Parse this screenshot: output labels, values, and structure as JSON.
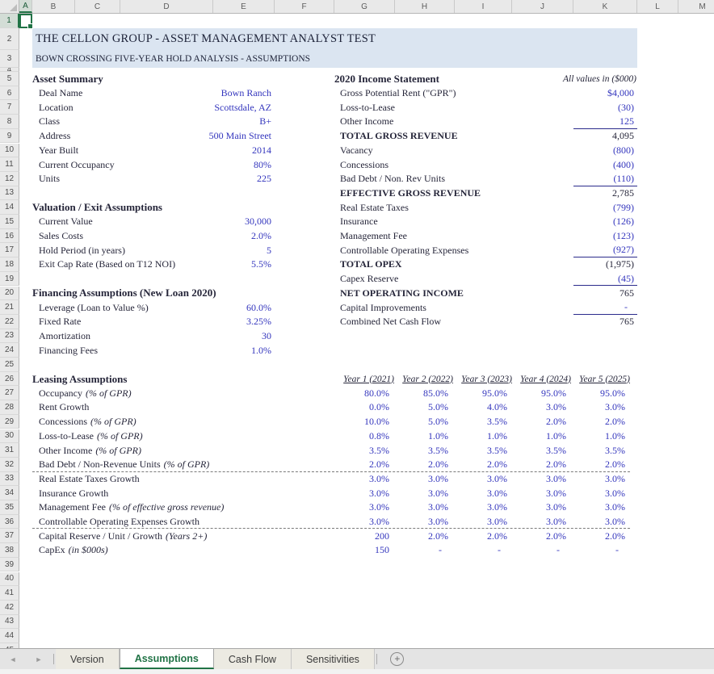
{
  "grid": {
    "column_letters": [
      "A",
      "B",
      "C",
      "D",
      "E",
      "F",
      "G",
      "H",
      "I",
      "J",
      "K",
      "L",
      "M"
    ],
    "visible_row_count": 45,
    "selected_cell": "A1"
  },
  "title_block": {
    "line1": "THE CELLON GROUP - ASSET MANAGEMENT ANALYST TEST",
    "line2": "BOWN CROSSING FIVE-YEAR HOLD ANALYSIS - ASSUMPTIONS"
  },
  "asset_summary": {
    "heading": "Asset Summary",
    "items": [
      {
        "label": "Deal Name",
        "value": "Bown Ranch"
      },
      {
        "label": "Location",
        "value": "Scottsdale, AZ"
      },
      {
        "label": "Class",
        "value": "B+"
      },
      {
        "label": "Address",
        "value": "500 Main Street"
      },
      {
        "label": "Year Built",
        "value": "2014"
      },
      {
        "label": "Current Occupancy",
        "value": "80%"
      },
      {
        "label": "Units",
        "value": "225"
      }
    ]
  },
  "valuation_exit": {
    "heading": "Valuation / Exit Assumptions",
    "items": [
      {
        "label": "Current Value",
        "value": "30,000"
      },
      {
        "label": "Sales Costs",
        "value": "2.0%"
      },
      {
        "label": "Hold Period (in years)",
        "value": "5"
      },
      {
        "label": "Exit Cap Rate (Based on T12 NOI)",
        "value": "5.5%"
      }
    ]
  },
  "financing": {
    "heading": "Financing Assumptions (New Loan 2020)",
    "items": [
      {
        "label": "Leverage (Loan to Value %)",
        "value": "60.0%"
      },
      {
        "label": "Fixed Rate",
        "value": "3.25%"
      },
      {
        "label": "Amortization",
        "value": "30"
      },
      {
        "label": "Financing Fees",
        "value": "1.0%"
      }
    ]
  },
  "income_statement": {
    "heading": "2020 Income Statement",
    "note": "All values in ($000)",
    "lines": [
      {
        "label": "Gross Potential Rent (\"GPR\")",
        "value": "$4,000",
        "style": "input",
        "sum_line": false
      },
      {
        "label": "Loss-to-Lease",
        "value": "(30)",
        "style": "input",
        "sum_line": false
      },
      {
        "label": "Other Income",
        "value": "125",
        "style": "input",
        "sum_line": true
      },
      {
        "label": "TOTAL GROSS REVENUE",
        "value": "4,095",
        "style": "total",
        "sum_line": false
      },
      {
        "label": "Vacancy",
        "value": "(800)",
        "style": "input",
        "sum_line": false
      },
      {
        "label": "Concessions",
        "value": "(400)",
        "style": "input",
        "sum_line": false
      },
      {
        "label": "Bad Debt / Non. Rev Units",
        "value": "(110)",
        "style": "input",
        "sum_line": true
      },
      {
        "label": "EFFECTIVE GROSS REVENUE",
        "value": "2,785",
        "style": "total",
        "sum_line": false
      },
      {
        "label": "Real Estate Taxes",
        "value": "(799)",
        "style": "input",
        "sum_line": false
      },
      {
        "label": "Insurance",
        "value": "(126)",
        "style": "input",
        "sum_line": false
      },
      {
        "label": "Management Fee",
        "value": "(123)",
        "style": "input",
        "sum_line": false
      },
      {
        "label": "Controllable Operating Expenses",
        "value": "(927)",
        "style": "input",
        "sum_line": true
      },
      {
        "label": "TOTAL OPEX",
        "value": "(1,975)",
        "style": "total",
        "sum_line": false
      },
      {
        "label": "Capex Reserve",
        "value": "(45)",
        "style": "input",
        "sum_line": true
      },
      {
        "label": "NET OPERATING INCOME",
        "value": "765",
        "style": "total",
        "sum_line": false
      },
      {
        "label": "Capital Improvements",
        "value": "-",
        "style": "input",
        "sum_line": true
      },
      {
        "label": "Combined Net Cash Flow",
        "value": "765",
        "style": "plain",
        "sum_line": false
      }
    ]
  },
  "leasing": {
    "heading": "Leasing Assumptions",
    "year_headers": [
      "Year 1 (2021)",
      "Year 2 (2022)",
      "Year 3 (2023)",
      "Year 4 (2024)",
      "Year 5 (2025)"
    ],
    "rows": [
      {
        "label": "Occupancy",
        "note": "(% of GPR)",
        "values": [
          "80.0%",
          "85.0%",
          "95.0%",
          "95.0%",
          "95.0%"
        ],
        "dashed_bottom": false
      },
      {
        "label": "Rent Growth",
        "note": "",
        "values": [
          "0.0%",
          "5.0%",
          "4.0%",
          "3.0%",
          "3.0%"
        ],
        "dashed_bottom": false
      },
      {
        "label": "Concessions",
        "note": "(% of GPR)",
        "values": [
          "10.0%",
          "5.0%",
          "3.5%",
          "2.0%",
          "2.0%"
        ],
        "dashed_bottom": false
      },
      {
        "label": "Loss-to-Lease",
        "note": "(% of GPR)",
        "values": [
          "0.8%",
          "1.0%",
          "1.0%",
          "1.0%",
          "1.0%"
        ],
        "dashed_bottom": false
      },
      {
        "label": "Other Income",
        "note": "(% of GPR)",
        "values": [
          "3.5%",
          "3.5%",
          "3.5%",
          "3.5%",
          "3.5%"
        ],
        "dashed_bottom": false
      },
      {
        "label": "Bad Debt / Non-Revenue Units",
        "note": "(% of GPR)",
        "values": [
          "2.0%",
          "2.0%",
          "2.0%",
          "2.0%",
          "2.0%"
        ],
        "dashed_bottom": true
      },
      {
        "label": "Real Estate Taxes Growth",
        "note": "",
        "values": [
          "3.0%",
          "3.0%",
          "3.0%",
          "3.0%",
          "3.0%"
        ],
        "dashed_bottom": false
      },
      {
        "label": "Insurance Growth",
        "note": "",
        "values": [
          "3.0%",
          "3.0%",
          "3.0%",
          "3.0%",
          "3.0%"
        ],
        "dashed_bottom": false
      },
      {
        "label": "Management Fee",
        "note": "(% of effective gross revenue)",
        "values": [
          "3.0%",
          "3.0%",
          "3.0%",
          "3.0%",
          "3.0%"
        ],
        "dashed_bottom": false
      },
      {
        "label": "Controllable Operating Expenses Growth",
        "note": "",
        "values": [
          "3.0%",
          "3.0%",
          "3.0%",
          "3.0%",
          "3.0%"
        ],
        "dashed_bottom": true
      },
      {
        "label": "Capital Reserve / Unit / Growth",
        "note": "(Years 2+)",
        "values": [
          "200",
          "2.0%",
          "2.0%",
          "2.0%",
          "2.0%"
        ],
        "dashed_bottom": false
      },
      {
        "label": "CapEx",
        "note": "(in $000s)",
        "values": [
          "150",
          "-",
          "-",
          "-",
          "-"
        ],
        "dashed_bottom": false
      }
    ]
  },
  "tabs": {
    "items": [
      {
        "label": "Version",
        "active": false
      },
      {
        "label": "Assumptions",
        "active": true
      },
      {
        "label": "Cash Flow",
        "active": false
      },
      {
        "label": "Sensitivities",
        "active": false
      }
    ],
    "add_label": "+",
    "nav_prev": "◄",
    "nav_next": "►"
  },
  "colors": {
    "input_blue": "#3335bd",
    "accent_green": "#217346",
    "banner_blue": "#dbe5f1",
    "sum_line_navy": "#2b2b8c"
  }
}
